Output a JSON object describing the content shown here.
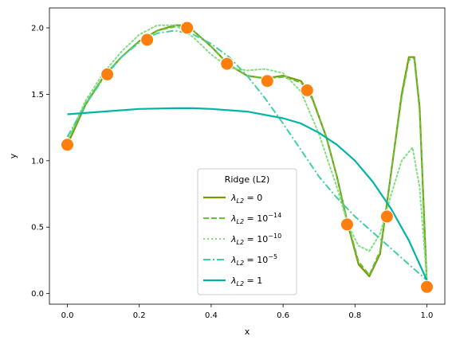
{
  "chart_data": {
    "type": "line",
    "xlabel": "x",
    "ylabel": "y",
    "xlim": [
      -0.05,
      1.05
    ],
    "ylim": [
      -0.08,
      2.15
    ],
    "xticks": [
      "0.0",
      "0.2",
      "0.4",
      "0.6",
      "0.8",
      "1.0"
    ],
    "xtick_values": [
      0.0,
      0.2,
      0.4,
      0.6,
      0.8,
      1.0
    ],
    "yticks": [
      "0.0",
      "0.5",
      "1.0",
      "1.5",
      "2.0"
    ],
    "ytick_values": [
      0.0,
      0.5,
      1.0,
      1.5,
      2.0
    ],
    "grid": false,
    "legend": {
      "title": "Ridge (L2)",
      "placement": "lower-center"
    },
    "points": {
      "color": "#ff7f0e",
      "x": [
        0.0,
        0.111,
        0.222,
        0.333,
        0.444,
        0.556,
        0.667,
        0.778,
        0.889,
        1.0
      ],
      "y": [
        1.12,
        1.65,
        1.91,
        2.0,
        1.73,
        1.6,
        1.53,
        0.52,
        0.58,
        0.05
      ]
    },
    "series": [
      {
        "label_base": "λ",
        "label_sub": "L2",
        "label_eq": " = 0",
        "label_sup": "",
        "color": "#7a9a01",
        "dash": "",
        "width": 2.2,
        "x": [
          0.0,
          0.05,
          0.1,
          0.15,
          0.2,
          0.25,
          0.3,
          0.333,
          0.35,
          0.4,
          0.45,
          0.5,
          0.55,
          0.6,
          0.65,
          0.68,
          0.72,
          0.75,
          0.78,
          0.81,
          0.84,
          0.87,
          0.9,
          0.93,
          0.95,
          0.965,
          0.98,
          1.0
        ],
        "y": [
          1.12,
          1.42,
          1.63,
          1.78,
          1.9,
          1.98,
          2.02,
          2.02,
          1.98,
          1.86,
          1.72,
          1.64,
          1.62,
          1.64,
          1.6,
          1.48,
          1.18,
          0.88,
          0.52,
          0.22,
          0.13,
          0.3,
          0.9,
          1.5,
          1.78,
          1.78,
          1.4,
          0.06
        ]
      },
      {
        "label_base": "λ",
        "label_sub": "L2",
        "label_eq": " = 10",
        "label_sup": "−14",
        "color": "#6bbf3f",
        "dash": "7,3",
        "width": 2.0,
        "x": [
          0.0,
          0.05,
          0.1,
          0.15,
          0.2,
          0.25,
          0.3,
          0.333,
          0.35,
          0.4,
          0.45,
          0.5,
          0.55,
          0.6,
          0.65,
          0.68,
          0.72,
          0.75,
          0.78,
          0.81,
          0.84,
          0.87,
          0.9,
          0.93,
          0.95,
          0.965,
          0.98,
          1.0
        ],
        "y": [
          1.14,
          1.43,
          1.63,
          1.78,
          1.9,
          1.98,
          2.01,
          2.02,
          1.98,
          1.86,
          1.72,
          1.64,
          1.62,
          1.63,
          1.59,
          1.47,
          1.18,
          0.88,
          0.53,
          0.24,
          0.14,
          0.32,
          0.9,
          1.48,
          1.76,
          1.77,
          1.38,
          0.08
        ]
      },
      {
        "label_base": "λ",
        "label_sub": "L2",
        "label_eq": " = 10",
        "label_sup": "−10",
        "color": "#80e080",
        "dash": "2,3",
        "width": 2.0,
        "x": [
          0.0,
          0.05,
          0.1,
          0.15,
          0.2,
          0.25,
          0.3,
          0.35,
          0.4,
          0.45,
          0.5,
          0.55,
          0.6,
          0.65,
          0.7,
          0.75,
          0.78,
          0.81,
          0.84,
          0.87,
          0.9,
          0.93,
          0.96,
          0.98,
          1.0
        ],
        "y": [
          1.15,
          1.45,
          1.66,
          1.82,
          1.95,
          2.02,
          2.02,
          1.93,
          1.8,
          1.7,
          1.68,
          1.69,
          1.66,
          1.52,
          1.2,
          0.8,
          0.52,
          0.36,
          0.32,
          0.45,
          0.74,
          1.0,
          1.1,
          0.8,
          0.1
        ]
      },
      {
        "label_base": "λ",
        "label_sub": "L2",
        "label_eq": " = 10",
        "label_sup": "−5",
        "color": "#40d0a0",
        "dash": "9,3,2,3",
        "width": 2.0,
        "x": [
          0.0,
          0.05,
          0.1,
          0.15,
          0.2,
          0.25,
          0.3,
          0.35,
          0.4,
          0.45,
          0.5,
          0.55,
          0.6,
          0.65,
          0.7,
          0.75,
          0.8,
          0.85,
          0.9,
          0.95,
          1.0
        ],
        "y": [
          1.18,
          1.42,
          1.62,
          1.78,
          1.89,
          1.96,
          1.98,
          1.95,
          1.88,
          1.78,
          1.64,
          1.47,
          1.28,
          1.08,
          0.88,
          0.72,
          0.58,
          0.46,
          0.34,
          0.22,
          0.1
        ]
      },
      {
        "label_base": "λ",
        "label_sub": "L2",
        "label_eq": " = 1",
        "label_sup": "",
        "color": "#00b5a5",
        "dash": "",
        "width": 2.2,
        "x": [
          0.0,
          0.1,
          0.2,
          0.3,
          0.35,
          0.4,
          0.5,
          0.6,
          0.65,
          0.7,
          0.75,
          0.8,
          0.85,
          0.9,
          0.95,
          1.0
        ],
        "y": [
          1.35,
          1.37,
          1.39,
          1.395,
          1.395,
          1.39,
          1.37,
          1.32,
          1.28,
          1.21,
          1.12,
          1.0,
          0.84,
          0.64,
          0.4,
          0.1
        ]
      }
    ]
  }
}
